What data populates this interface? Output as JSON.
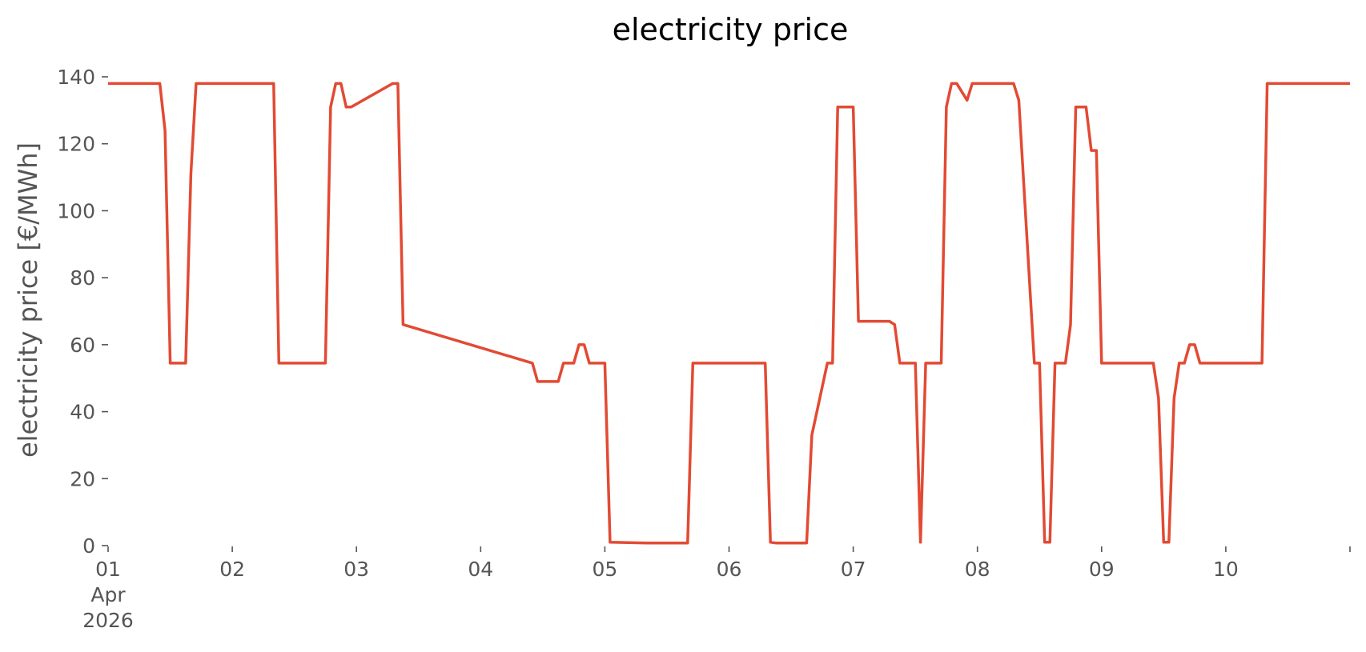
{
  "chart_data": {
    "type": "line",
    "title": "electricity price",
    "xlabel": "",
    "ylabel": "electricity price [€/MWh]",
    "grid": false,
    "legend": "none",
    "color": "#E24A33",
    "xlim": [
      "2026-04-01 00:00",
      "2026-04-11 00:00"
    ],
    "ylim": [
      0,
      140
    ],
    "yticks": [
      0,
      20,
      40,
      60,
      80,
      100,
      120,
      140
    ],
    "xticks": [
      {
        "x": "2026-04-01 00:00",
        "label": "01",
        "sublabel": "Apr",
        "sublabel2": "2026"
      },
      {
        "x": "2026-04-02 00:00",
        "label": "02"
      },
      {
        "x": "2026-04-03 00:00",
        "label": "03"
      },
      {
        "x": "2026-04-04 00:00",
        "label": "04"
      },
      {
        "x": "2026-04-05 00:00",
        "label": "05"
      },
      {
        "x": "2026-04-06 00:00",
        "label": "06"
      },
      {
        "x": "2026-04-07 00:00",
        "label": "07"
      },
      {
        "x": "2026-04-08 00:00",
        "label": "08"
      },
      {
        "x": "2026-04-09 00:00",
        "label": "09"
      },
      {
        "x": "2026-04-10 00:00",
        "label": "10"
      },
      {
        "x": "2026-04-11 00:00",
        "label": ""
      }
    ],
    "series": [
      {
        "x": [
          "2026-04-01 00:00",
          "2026-04-01 10:00",
          "2026-04-01 11:00",
          "2026-04-01 12:00",
          "2026-04-01 15:00",
          "2026-04-01 16:00",
          "2026-04-01 17:00",
          "2026-04-02 08:00",
          "2026-04-02 09:00",
          "2026-04-02 18:00",
          "2026-04-02 19:00",
          "2026-04-02 20:00",
          "2026-04-02 21:00",
          "2026-04-02 22:00",
          "2026-04-02 23:00",
          "2026-04-03 07:00",
          "2026-04-03 08:00",
          "2026-04-03 09:00",
          "2026-04-04 10:00",
          "2026-04-04 11:00",
          "2026-04-04 15:00",
          "2026-04-04 16:00",
          "2026-04-04 18:00",
          "2026-04-04 19:00",
          "2026-04-04 20:00",
          "2026-04-04 21:00",
          "2026-04-05 00:00",
          "2026-04-05 01:00",
          "2026-04-05 08:00",
          "2026-04-05 16:00",
          "2026-04-05 17:00",
          "2026-04-06 07:00",
          "2026-04-06 08:00",
          "2026-04-06 09:00",
          "2026-04-06 15:00",
          "2026-04-06 16:00",
          "2026-04-06 19:00",
          "2026-04-06 20:00",
          "2026-04-06 21:00",
          "2026-04-07 00:00",
          "2026-04-07 01:00",
          "2026-04-07 07:00",
          "2026-04-07 08:00",
          "2026-04-07 09:00",
          "2026-04-07 12:00",
          "2026-04-07 13:00",
          "2026-04-07 14:00",
          "2026-04-07 17:00",
          "2026-04-07 18:00",
          "2026-04-07 19:00",
          "2026-04-07 20:00",
          "2026-04-07 22:00",
          "2026-04-07 23:00",
          "2026-04-08 00:00",
          "2026-04-08 07:00",
          "2026-04-08 08:00",
          "2026-04-08 11:00",
          "2026-04-08 12:00",
          "2026-04-08 13:00",
          "2026-04-08 14:00",
          "2026-04-08 15:00",
          "2026-04-08 17:00",
          "2026-04-08 18:00",
          "2026-04-08 19:00",
          "2026-04-08 21:00",
          "2026-04-08 22:00",
          "2026-04-08 23:00",
          "2026-04-09 00:00",
          "2026-04-09 10:00",
          "2026-04-09 11:00",
          "2026-04-09 12:00",
          "2026-04-09 13:00",
          "2026-04-09 14:00",
          "2026-04-09 15:00",
          "2026-04-09 16:00",
          "2026-04-09 17:00",
          "2026-04-09 18:00",
          "2026-04-09 19:00",
          "2026-04-10 07:00",
          "2026-04-10 08:00",
          "2026-04-11 00:00"
        ],
        "values": [
          138,
          138,
          124,
          54.5,
          54.5,
          111,
          138,
          138,
          54.5,
          54.5,
          131,
          138,
          138,
          131,
          131,
          138,
          138,
          66,
          54.5,
          49,
          49,
          54.5,
          54.5,
          60,
          60,
          54.5,
          54.5,
          1,
          0.8,
          0.8,
          54.5,
          54.5,
          1,
          0.8,
          0.8,
          33,
          54.5,
          54.5,
          131,
          131,
          67,
          67,
          66,
          54.5,
          54.5,
          1,
          54.5,
          54.5,
          131,
          138,
          138,
          133,
          138,
          138,
          138,
          133,
          54.5,
          54.5,
          1,
          1,
          54.5,
          54.5,
          66,
          131,
          131,
          118,
          118,
          54.5,
          54.5,
          44,
          1,
          1,
          44,
          54.5,
          54.5,
          60,
          60,
          54.5,
          54.5,
          138,
          138
        ]
      }
    ]
  }
}
